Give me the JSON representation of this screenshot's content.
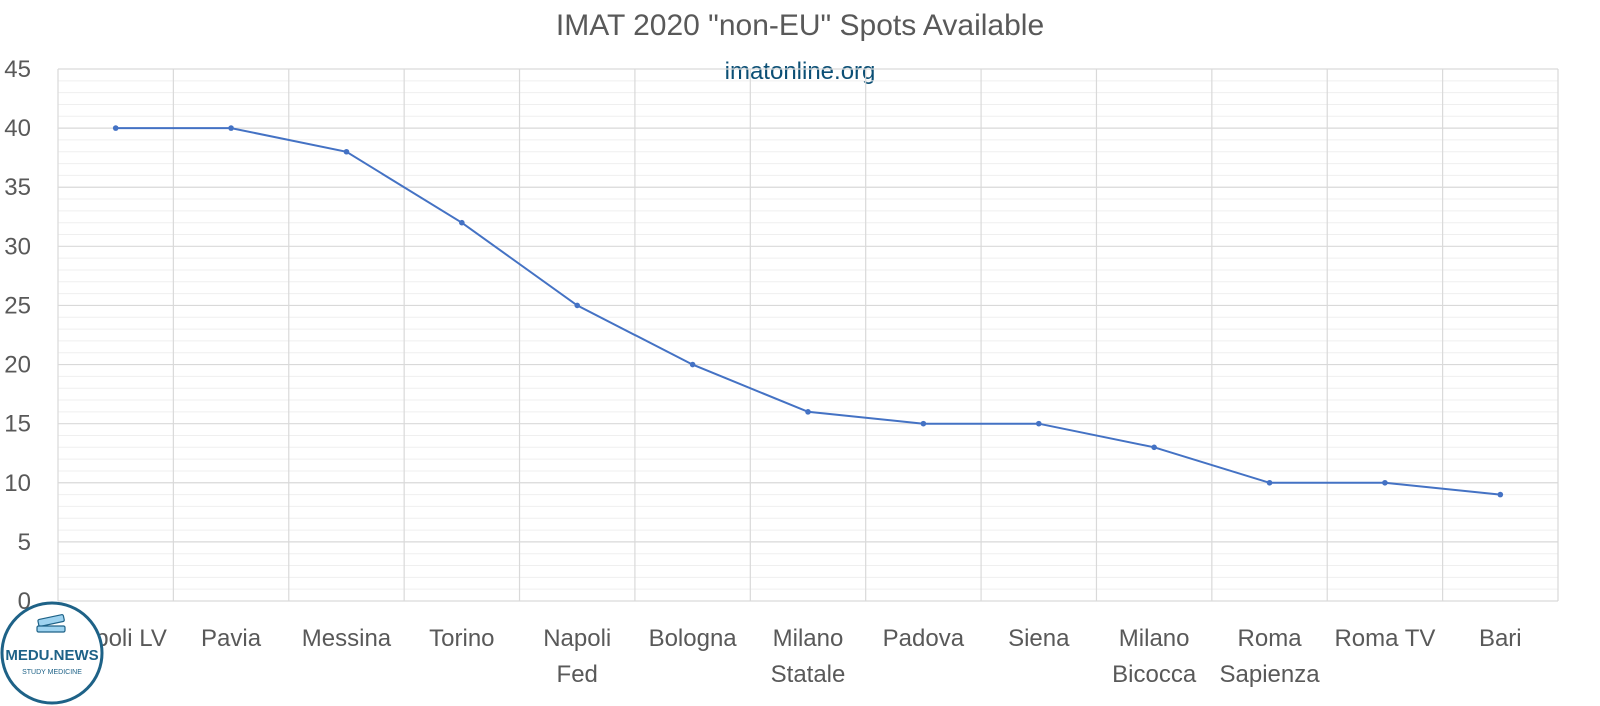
{
  "chart_data": {
    "type": "line",
    "title": "IMAT 2020 \"non-EU\" Spots Available",
    "subtitle": "imatonline.org",
    "xlabel": "",
    "ylabel": "",
    "ylim": [
      0,
      45
    ],
    "yticks": [
      "0",
      "5",
      "10",
      "15",
      "20",
      "25",
      "30",
      "35",
      "40",
      "45"
    ],
    "grid": true,
    "legend": "none",
    "categories": [
      [
        "Napoli LV"
      ],
      [
        "Pavia"
      ],
      [
        "Messina"
      ],
      [
        "Torino"
      ],
      [
        "Napoli",
        "Fed"
      ],
      [
        "Bologna"
      ],
      [
        "Milano",
        "Statale"
      ],
      [
        "Padova"
      ],
      [
        "Siena"
      ],
      [
        "Milano",
        "Bicocca"
      ],
      [
        "Roma",
        "Sapienza"
      ],
      [
        "Roma TV"
      ],
      [
        "Bari"
      ]
    ],
    "series": [
      {
        "values": [
          40,
          40,
          38,
          32,
          25,
          20,
          16,
          15,
          15,
          13,
          10,
          10,
          9
        ],
        "color": "#4472c4"
      }
    ]
  },
  "logo": {
    "name": "MEDU.NEWS",
    "tagline": "STUDY MEDICINE",
    "icon": "book-stack-icon",
    "color": "#1e6287"
  }
}
